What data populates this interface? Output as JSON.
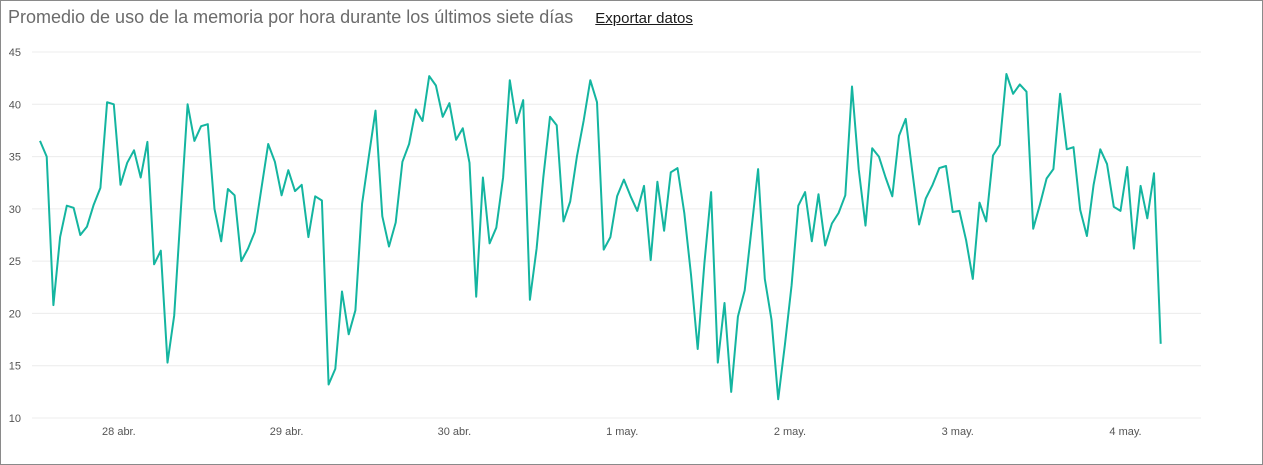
{
  "header": {
    "title": "Promedio de uso de la memoria por hora durante los últimos siete días",
    "export_label": "Exportar datos"
  },
  "colors": {
    "line": "#14b5a0",
    "grid": "#ececec",
    "frame": "#8a8a8a"
  },
  "chart_data": {
    "type": "line",
    "title": "Promedio de uso de la memoria por hora durante los últimos siete días",
    "xlabel": "",
    "ylabel": "",
    "ylim": [
      10,
      45
    ],
    "yticks": [
      10,
      15,
      20,
      25,
      30,
      35,
      40,
      45
    ],
    "x_ticks": [
      {
        "label": "28 abr.",
        "x": 1
      },
      {
        "label": "29 abr.",
        "x": 2
      },
      {
        "label": "30 abr.",
        "x": 3
      },
      {
        "label": "1 may.",
        "x": 4
      },
      {
        "label": "2 may.",
        "x": 5
      },
      {
        "label": "3 may.",
        "x": 6
      },
      {
        "label": "4 may.",
        "x": 7
      }
    ],
    "xlim": [
      0.53,
      7.45
    ],
    "grid": true,
    "series": [
      {
        "points": [
          [
            0.53,
            36.5
          ],
          [
            0.57,
            35
          ],
          [
            0.61,
            20.8
          ],
          [
            0.65,
            27.3
          ],
          [
            0.69,
            30.3
          ],
          [
            0.73,
            30.1
          ],
          [
            0.77,
            27.5
          ],
          [
            0.81,
            28.3
          ],
          [
            0.85,
            30.4
          ],
          [
            0.89,
            32
          ],
          [
            0.93,
            40.2
          ],
          [
            0.97,
            40
          ],
          [
            1.01,
            32.3
          ],
          [
            1.05,
            34.4
          ],
          [
            1.09,
            35.6
          ],
          [
            1.13,
            33
          ],
          [
            1.17,
            36.4
          ],
          [
            1.21,
            24.7
          ],
          [
            1.25,
            26
          ],
          [
            1.29,
            15.3
          ],
          [
            1.33,
            19.8
          ],
          [
            1.37,
            30
          ],
          [
            1.41,
            40
          ],
          [
            1.45,
            36.5
          ],
          [
            1.49,
            37.9
          ],
          [
            1.53,
            38.1
          ],
          [
            1.57,
            30
          ],
          [
            1.61,
            26.9
          ],
          [
            1.65,
            31.9
          ],
          [
            1.69,
            31.3
          ],
          [
            1.73,
            25
          ],
          [
            1.77,
            26.2
          ],
          [
            1.81,
            27.8
          ],
          [
            1.85,
            32
          ],
          [
            1.89,
            36.2
          ],
          [
            1.93,
            34.5
          ],
          [
            1.97,
            31.3
          ],
          [
            2.01,
            33.7
          ],
          [
            2.05,
            31.7
          ],
          [
            2.09,
            32.3
          ],
          [
            2.13,
            27.3
          ],
          [
            2.17,
            31.2
          ],
          [
            2.21,
            30.8
          ],
          [
            2.25,
            13.2
          ],
          [
            2.29,
            14.7
          ],
          [
            2.33,
            22.1
          ],
          [
            2.37,
            18
          ],
          [
            2.41,
            20.3
          ],
          [
            2.45,
            30.5
          ],
          [
            2.49,
            35
          ],
          [
            2.53,
            39.4
          ],
          [
            2.57,
            29.3
          ],
          [
            2.61,
            26.4
          ],
          [
            2.65,
            28.7
          ],
          [
            2.69,
            34.5
          ],
          [
            2.73,
            36.2
          ],
          [
            2.77,
            39.5
          ],
          [
            2.81,
            38.4
          ],
          [
            2.85,
            42.7
          ],
          [
            2.89,
            41.8
          ],
          [
            2.93,
            38.8
          ],
          [
            2.97,
            40.1
          ],
          [
            3.01,
            36.6
          ],
          [
            3.05,
            37.7
          ],
          [
            3.09,
            34.4
          ],
          [
            3.13,
            21.6
          ],
          [
            3.17,
            33
          ],
          [
            3.21,
            26.7
          ],
          [
            3.25,
            28.2
          ],
          [
            3.29,
            33
          ],
          [
            3.33,
            42.3
          ],
          [
            3.37,
            38.2
          ],
          [
            3.41,
            40.4
          ],
          [
            3.45,
            21.3
          ],
          [
            3.49,
            26.2
          ],
          [
            3.53,
            33
          ],
          [
            3.57,
            38.8
          ],
          [
            3.61,
            38
          ],
          [
            3.65,
            28.8
          ],
          [
            3.69,
            30.7
          ],
          [
            3.73,
            35
          ],
          [
            3.77,
            38.4
          ],
          [
            3.81,
            42.3
          ],
          [
            3.85,
            40.2
          ],
          [
            3.89,
            26.1
          ],
          [
            3.93,
            27.3
          ],
          [
            3.97,
            31.2
          ],
          [
            4.01,
            32.8
          ],
          [
            4.05,
            31.2
          ],
          [
            4.09,
            29.8
          ],
          [
            4.13,
            32.2
          ],
          [
            4.17,
            25.1
          ],
          [
            4.21,
            32.6
          ],
          [
            4.25,
            27.9
          ],
          [
            4.29,
            33.5
          ],
          [
            4.33,
            33.9
          ],
          [
            4.37,
            29.6
          ],
          [
            4.41,
            23.7
          ],
          [
            4.45,
            16.6
          ],
          [
            4.49,
            24.8
          ],
          [
            4.53,
            31.6
          ],
          [
            4.57,
            15.3
          ],
          [
            4.61,
            21
          ],
          [
            4.65,
            12.5
          ],
          [
            4.69,
            19.7
          ],
          [
            4.73,
            22.2
          ],
          [
            4.77,
            28
          ],
          [
            4.81,
            33.8
          ],
          [
            4.85,
            23.3
          ],
          [
            4.89,
            19.4
          ],
          [
            4.93,
            11.8
          ],
          [
            4.97,
            17
          ],
          [
            5.01,
            22.7
          ],
          [
            5.05,
            30.3
          ],
          [
            5.09,
            31.6
          ],
          [
            5.13,
            26.9
          ],
          [
            5.17,
            31.4
          ],
          [
            5.21,
            26.5
          ],
          [
            5.25,
            28.6
          ],
          [
            5.29,
            29.6
          ],
          [
            5.33,
            31.3
          ],
          [
            5.37,
            41.7
          ],
          [
            5.41,
            33.8
          ],
          [
            5.45,
            28.4
          ],
          [
            5.49,
            35.8
          ],
          [
            5.53,
            35
          ],
          [
            5.57,
            33
          ],
          [
            5.61,
            31.2
          ],
          [
            5.65,
            37
          ],
          [
            5.69,
            38.6
          ],
          [
            5.73,
            33.5
          ],
          [
            5.77,
            28.5
          ],
          [
            5.81,
            31
          ],
          [
            5.85,
            32.3
          ],
          [
            5.89,
            33.9
          ],
          [
            5.93,
            34.1
          ],
          [
            5.97,
            29.7
          ],
          [
            6.01,
            29.8
          ],
          [
            6.05,
            27
          ],
          [
            6.09,
            23.3
          ],
          [
            6.13,
            30.6
          ],
          [
            6.17,
            28.8
          ],
          [
            6.21,
            35.1
          ],
          [
            6.25,
            36.1
          ],
          [
            6.29,
            42.9
          ],
          [
            6.33,
            41
          ],
          [
            6.37,
            41.9
          ],
          [
            6.41,
            41.2
          ],
          [
            6.45,
            28.1
          ],
          [
            6.49,
            30.4
          ],
          [
            6.53,
            32.9
          ],
          [
            6.57,
            33.8
          ],
          [
            6.61,
            41
          ],
          [
            6.65,
            35.7
          ],
          [
            6.69,
            35.9
          ],
          [
            6.73,
            29.9
          ],
          [
            6.77,
            27.4
          ],
          [
            6.81,
            32.3
          ],
          [
            6.85,
            35.7
          ],
          [
            6.89,
            34.3
          ],
          [
            6.93,
            30.2
          ],
          [
            6.97,
            29.8
          ],
          [
            7.01,
            34
          ],
          [
            7.05,
            26.2
          ],
          [
            7.09,
            32.2
          ],
          [
            7.13,
            29.1
          ],
          [
            7.17,
            33.4
          ],
          [
            7.21,
            17.1
          ]
        ]
      }
    ]
  }
}
